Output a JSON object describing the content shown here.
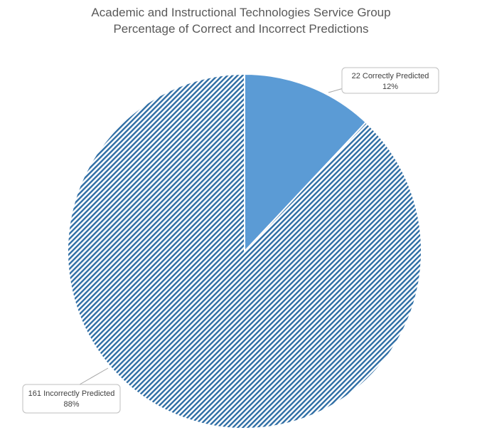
{
  "chart_data": {
    "type": "pie",
    "title": "Academic and Instructional Technologies Service Group",
    "subtitle": "Percentage of Correct and Incorrect Predictions",
    "categories": [
      "Correctly Predicted",
      "Incorrectly Predicted"
    ],
    "values": [
      22,
      161
    ],
    "percent_labels": [
      "12%",
      "88%"
    ],
    "data_labels": [
      "22 Correctly Predicted",
      "161 Incorrectly Predicted"
    ],
    "colors": {
      "correct": "#5b9bd5",
      "incorrect_stripe": "#2e6da4"
    },
    "fill_styles": [
      "solid",
      "diagonal-stripes"
    ],
    "legend": "none"
  }
}
